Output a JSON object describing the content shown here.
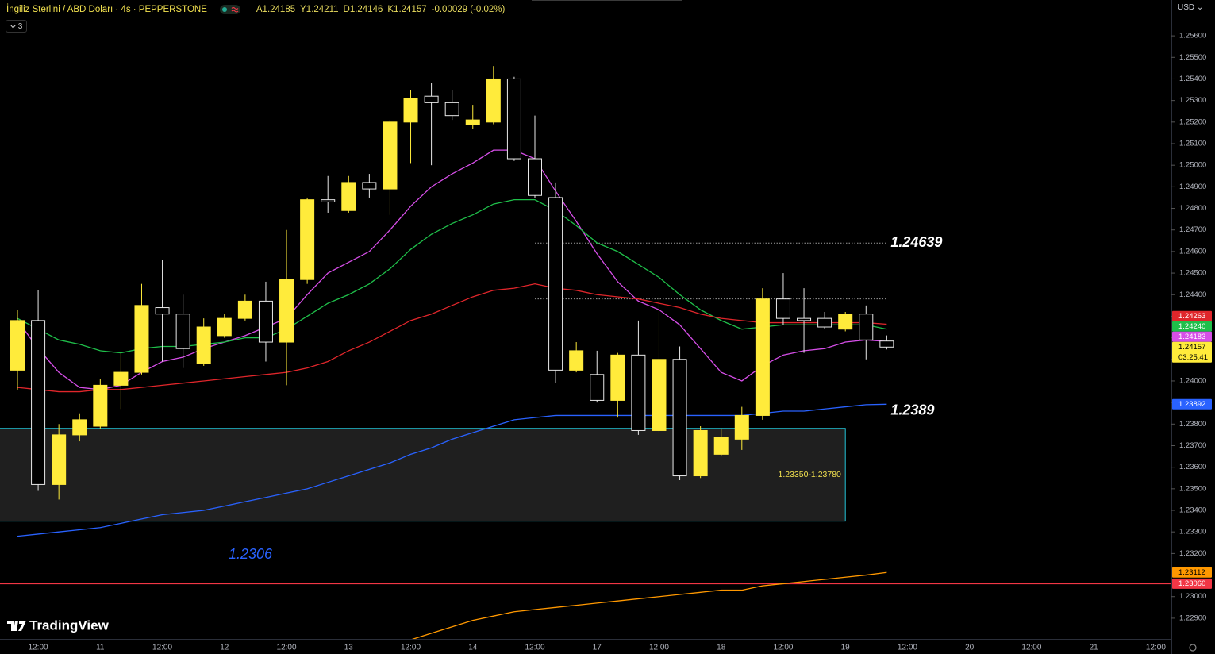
{
  "header": {
    "symbol": "İngiliz Sterlini / ABD Doları · 4s · PEPPERSTONE",
    "ohlc": [
      "A1.24185",
      "Y1.24211",
      "D1.24146",
      "K1.24157"
    ],
    "change": "-0.00029 (-0.02%)",
    "indicators_collapsed": 3
  },
  "currency": "USD",
  "brand": "TradingView",
  "chart_data": {
    "type": "candlestick",
    "categories": [
      null,
      "12:00",
      null,
      null,
      "11",
      null,
      null,
      "12:00",
      null,
      null,
      "12",
      null,
      null,
      "12:00",
      null,
      null,
      "13",
      null,
      null,
      "12:00",
      null,
      null,
      "14",
      null,
      null,
      "12:00",
      null,
      null,
      "17",
      null,
      null,
      "12:00",
      null,
      null,
      "18",
      null,
      null,
      "12:00",
      null,
      null,
      "19",
      null,
      null,
      "12:00",
      null,
      null,
      "20",
      null,
      null,
      "12:00",
      null,
      null,
      "21",
      null,
      null,
      "12:00"
    ],
    "open": [
      1.2405,
      1.2428,
      1.2352,
      1.2375,
      1.2379,
      1.2398,
      1.2404,
      1.2434,
      1.2431,
      1.2408,
      1.2421,
      1.2429,
      1.2437,
      1.2418,
      1.2447,
      1.2484,
      1.2479,
      1.2492,
      1.2489,
      1.252,
      1.2532,
      1.2529,
      1.2519,
      1.252,
      1.254,
      1.2503,
      1.2485,
      1.2405,
      1.2403,
      1.2391,
      1.2412,
      1.2377,
      1.241,
      1.2356,
      1.2366,
      1.2373,
      1.2384,
      1.2438,
      1.2429,
      1.2429,
      1.2424,
      1.2431,
      1.24185,
      null,
      null,
      null,
      null,
      null,
      null,
      null,
      null,
      null,
      null,
      null,
      null,
      null
    ],
    "high": [
      1.2433,
      1.2442,
      1.238,
      1.2385,
      1.2401,
      1.2413,
      1.2445,
      1.2456,
      1.244,
      1.2429,
      1.2431,
      1.244,
      1.2446,
      1.247,
      1.2485,
      1.2495,
      1.2495,
      1.2496,
      1.2521,
      1.2535,
      1.2538,
      1.2535,
      1.2528,
      1.2546,
      1.2541,
      1.2523,
      1.2492,
      1.2418,
      1.2414,
      1.2413,
      1.2428,
      1.2439,
      1.2416,
      1.2379,
      1.2378,
      1.2388,
      1.2443,
      1.245,
      1.2443,
      1.2432,
      1.2432,
      1.2435,
      1.24211,
      null,
      null,
      null,
      null,
      null,
      null,
      null,
      null,
      null,
      null,
      null,
      null,
      null
    ],
    "low": [
      1.2396,
      1.2349,
      1.2345,
      1.2372,
      1.2378,
      1.2387,
      1.2403,
      1.2409,
      1.2406,
      1.2407,
      1.242,
      1.2428,
      1.2409,
      1.2398,
      1.2445,
      1.2478,
      1.2478,
      1.2485,
      1.2477,
      1.2501,
      1.25,
      1.2521,
      1.2517,
      1.2519,
      1.2502,
      1.2485,
      1.2399,
      1.2404,
      1.239,
      1.2383,
      1.2375,
      1.2376,
      1.2354,
      1.2355,
      1.2365,
      1.2368,
      1.2382,
      1.2426,
      1.2413,
      1.2424,
      1.2423,
      1.241,
      1.24146,
      null,
      null,
      null,
      null,
      null,
      null,
      null,
      null,
      null,
      null,
      null,
      null,
      null
    ],
    "close": [
      1.2428,
      1.2352,
      1.2375,
      1.2382,
      1.2398,
      1.2404,
      1.2435,
      1.2431,
      1.2415,
      1.2425,
      1.2429,
      1.2437,
      1.2418,
      1.2447,
      1.2484,
      1.2483,
      1.2492,
      1.2489,
      1.252,
      1.2531,
      1.2529,
      1.2523,
      1.2521,
      1.254,
      1.2503,
      1.2486,
      1.2405,
      1.2414,
      1.2391,
      1.2412,
      1.2377,
      1.241,
      1.2356,
      1.2377,
      1.2374,
      1.2384,
      1.2438,
      1.2429,
      1.2428,
      1.2425,
      1.2431,
      1.2419,
      1.24157,
      null,
      null,
      null,
      null,
      null,
      null,
      null,
      null,
      null,
      null,
      null,
      null,
      null
    ],
    "colors": {
      "up": "#ffeb3b",
      "down_body": "#000000",
      "down_border": "#e8e8e8"
    },
    "series": [
      {
        "color": "#d64ee8",
        "tag": "1.24183",
        "values": [
          1.2428,
          1.2415,
          1.2404,
          1.2397,
          1.2396,
          1.2398,
          1.2404,
          1.2409,
          1.2411,
          1.2415,
          1.2418,
          1.2421,
          1.2425,
          1.2429,
          1.244,
          1.245,
          1.2455,
          1.246,
          1.247,
          1.2481,
          1.249,
          1.2496,
          1.2501,
          1.2507,
          1.2507,
          1.2503,
          1.2488,
          1.2474,
          1.2459,
          1.2446,
          1.2437,
          1.2433,
          1.2426,
          1.2415,
          1.2404,
          1.24,
          1.2407,
          1.2412,
          1.2414,
          1.2415,
          1.2418,
          1.2419,
          1.24183,
          null,
          null,
          null,
          null,
          null,
          null,
          null,
          null,
          null,
          null,
          null,
          null,
          null
        ]
      },
      {
        "color": "#1fbf4a",
        "tag": "1.24240",
        "values": [
          1.2429,
          1.2424,
          1.2419,
          1.2417,
          1.2414,
          1.2413,
          1.2415,
          1.2416,
          1.2416,
          1.2417,
          1.2418,
          1.242,
          1.242,
          1.2424,
          1.243,
          1.2436,
          1.244,
          1.2445,
          1.2452,
          1.2461,
          1.2468,
          1.2473,
          1.2477,
          1.2482,
          1.2484,
          1.2484,
          1.2479,
          1.2472,
          1.2464,
          1.246,
          1.2454,
          1.2448,
          1.244,
          1.2433,
          1.2428,
          1.2424,
          1.2425,
          1.2426,
          1.2426,
          1.2426,
          1.2426,
          1.2426,
          1.2424,
          null,
          null,
          null,
          null,
          null,
          null,
          null,
          null,
          null,
          null,
          null,
          null,
          null
        ]
      },
      {
        "color": "#e0262b",
        "tag": "1.24263",
        "values": [
          1.2397,
          1.2396,
          1.2395,
          1.2395,
          1.2396,
          1.2396,
          1.2397,
          1.2398,
          1.2399,
          1.24,
          1.2401,
          1.2402,
          1.2403,
          1.2404,
          1.2406,
          1.2409,
          1.2414,
          1.2418,
          1.2423,
          1.2428,
          1.2431,
          1.2435,
          1.2439,
          1.2442,
          1.2443,
          1.2445,
          1.2443,
          1.2442,
          1.244,
          1.2439,
          1.2438,
          1.2436,
          1.2434,
          1.2431,
          1.2429,
          1.2428,
          1.2427,
          1.2427,
          1.2427,
          1.2427,
          1.2427,
          1.2427,
          1.24263,
          null,
          null,
          null,
          null,
          null,
          null,
          null,
          null,
          null,
          null,
          null,
          null,
          null
        ]
      },
      {
        "color": "#2962ff",
        "tag": "1.23892",
        "values": [
          1.2328,
          1.2329,
          1.233,
          1.2331,
          1.2332,
          1.2334,
          1.2336,
          1.2338,
          1.2339,
          1.234,
          1.2342,
          1.2344,
          1.2346,
          1.2348,
          1.235,
          1.2353,
          1.2356,
          1.2359,
          1.2362,
          1.2366,
          1.2369,
          1.2373,
          1.2376,
          1.2379,
          1.2382,
          1.2383,
          1.2384,
          1.2384,
          1.2384,
          1.2384,
          1.2384,
          1.2384,
          1.2384,
          1.2384,
          1.2384,
          1.2384,
          1.2385,
          1.2386,
          1.2386,
          1.2387,
          1.2388,
          1.2389,
          1.23892,
          null,
          null,
          null,
          null,
          null,
          null,
          null,
          null,
          null,
          null,
          null,
          null,
          null
        ]
      },
      {
        "color": "#ff9800",
        "tag": "1.23112",
        "values": [
          null,
          null,
          null,
          null,
          null,
          null,
          null,
          null,
          null,
          null,
          null,
          null,
          null,
          null,
          null,
          null,
          null,
          null,
          null,
          1.228,
          1.2283,
          1.2286,
          1.2289,
          1.2291,
          1.2293,
          1.2294,
          1.2295,
          1.2296,
          1.2297,
          1.2298,
          1.2299,
          1.23,
          1.2301,
          1.2302,
          1.2303,
          1.2303,
          1.2305,
          1.2306,
          1.2307,
          1.2308,
          1.2309,
          1.231,
          1.23112,
          null,
          null,
          null,
          null,
          null,
          null,
          null,
          null,
          null,
          null,
          null,
          null,
          null
        ]
      }
    ],
    "ylim": [
      1.22804,
      1.25766
    ],
    "yticks": [
      {
        "value": 1.229,
        "label": "1.22900"
      },
      {
        "value": 1.23,
        "label": "1.23000"
      },
      {
        "value": 1.231,
        "label": "1.23100"
      },
      {
        "value": 1.232,
        "label": "1.23200"
      },
      {
        "value": 1.233,
        "label": "1.23300"
      },
      {
        "value": 1.234,
        "label": "1.23400"
      },
      {
        "value": 1.235,
        "label": "1.23500"
      },
      {
        "value": 1.236,
        "label": "1.23600"
      },
      {
        "value": 1.237,
        "label": "1.23700"
      },
      {
        "value": 1.238,
        "label": "1.23800"
      },
      {
        "value": 1.239,
        "label": "1.23900"
      },
      {
        "value": 1.24,
        "label": "1.24000"
      },
      {
        "value": 1.241,
        "label": "1.24100"
      },
      {
        "value": 1.242,
        "label": "1.24200"
      },
      {
        "value": 1.243,
        "label": "1.24300"
      },
      {
        "value": 1.244,
        "label": "1.24400"
      },
      {
        "value": 1.245,
        "label": "1.24500"
      },
      {
        "value": 1.246,
        "label": "1.24600"
      },
      {
        "value": 1.247,
        "label": "1.24700"
      },
      {
        "value": 1.248,
        "label": "1.24800"
      },
      {
        "value": 1.249,
        "label": "1.24900"
      },
      {
        "value": 1.25,
        "label": "1.25000"
      },
      {
        "value": 1.251,
        "label": "1.25100"
      },
      {
        "value": 1.252,
        "label": "1.25200"
      },
      {
        "value": 1.253,
        "label": "1.25300"
      },
      {
        "value": 1.254,
        "label": "1.25400"
      },
      {
        "value": 1.255,
        "label": "1.25500"
      },
      {
        "value": 1.256,
        "label": "1.25600"
      }
    ],
    "grid": false,
    "zone": {
      "low": 1.2335,
      "high": 1.2378,
      "label": "1.23350-1.23780",
      "fill": "#1f1f1f",
      "stroke": "#26c6da"
    },
    "levels": [
      {
        "value": 1.24639,
        "style": "dotted"
      },
      {
        "value": 1.2438,
        "style": "dotted"
      },
      {
        "value": 1.2306,
        "style": "solid",
        "color": "#f23645",
        "tag": "1.23060"
      }
    ],
    "annotations": [
      {
        "value": 1.24639,
        "label": "1.24639",
        "color": "#ffffff"
      },
      {
        "value": 1.2389,
        "label": "1.2389",
        "color": "#ffffff"
      },
      {
        "value": 1.2306,
        "label": "1.2306",
        "color": "#2962ff"
      }
    ],
    "last_price": {
      "label": "1.24157",
      "countdown": "03:25:41",
      "color": "#ffeb3b"
    }
  }
}
